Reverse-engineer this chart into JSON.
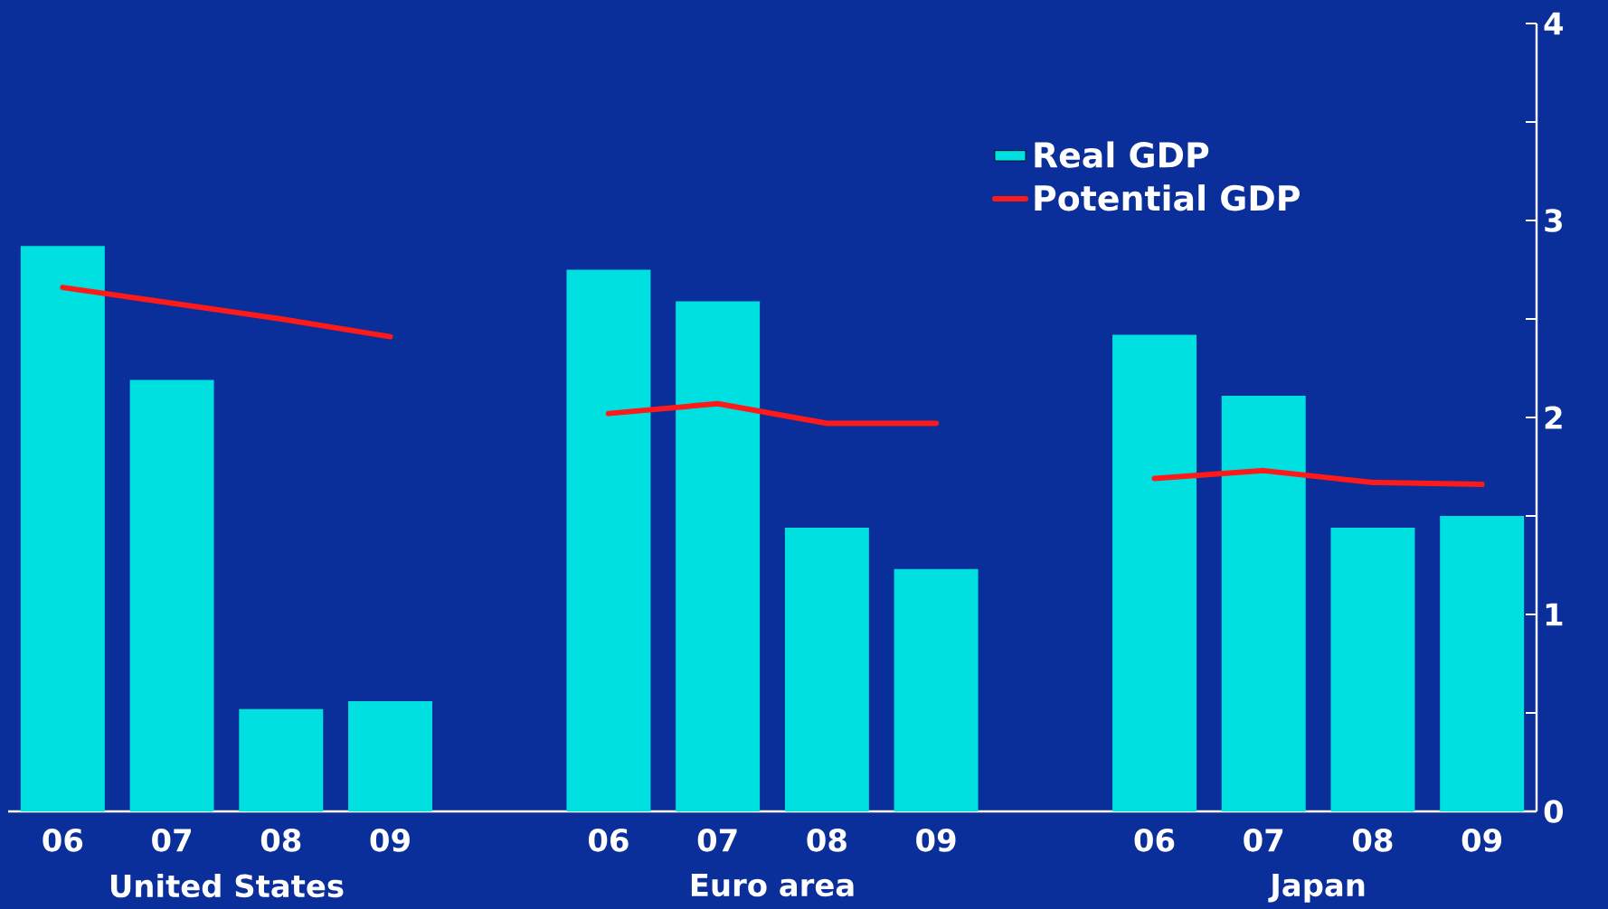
{
  "chart_data": {
    "type": "bar",
    "categories": [
      "06",
      "07",
      "08",
      "09",
      null,
      "06",
      "07",
      "08",
      "09",
      null,
      "06",
      "07",
      "08",
      "09"
    ],
    "series": [
      {
        "name": "Real GDP",
        "color": "#00e0e0",
        "values": [
          2.87,
          2.19,
          0.52,
          0.56,
          null,
          2.75,
          2.59,
          1.44,
          1.23,
          null,
          2.42,
          2.11,
          1.44,
          1.5
        ]
      },
      {
        "name": "Potential GDP",
        "type": "line",
        "color": "#ff1a1a",
        "values": [
          2.66,
          2.58,
          2.5,
          2.41,
          null,
          2.02,
          2.07,
          1.97,
          1.97,
          null,
          1.69,
          1.73,
          1.67,
          1.66
        ]
      }
    ],
    "ylim": [
      0,
      4
    ],
    "yticks": [
      0,
      {
        "value": 0.5,
        "label": null
      },
      1,
      {
        "value": 1.5,
        "label": null
      },
      2,
      {
        "value": 2.5,
        "label": null
      },
      3,
      {
        "value": 3.5,
        "label": null
      },
      4
    ],
    "annotations": [
      "United States",
      "Euro area",
      "Japan"
    ],
    "legend": "top right",
    "grid": false
  }
}
